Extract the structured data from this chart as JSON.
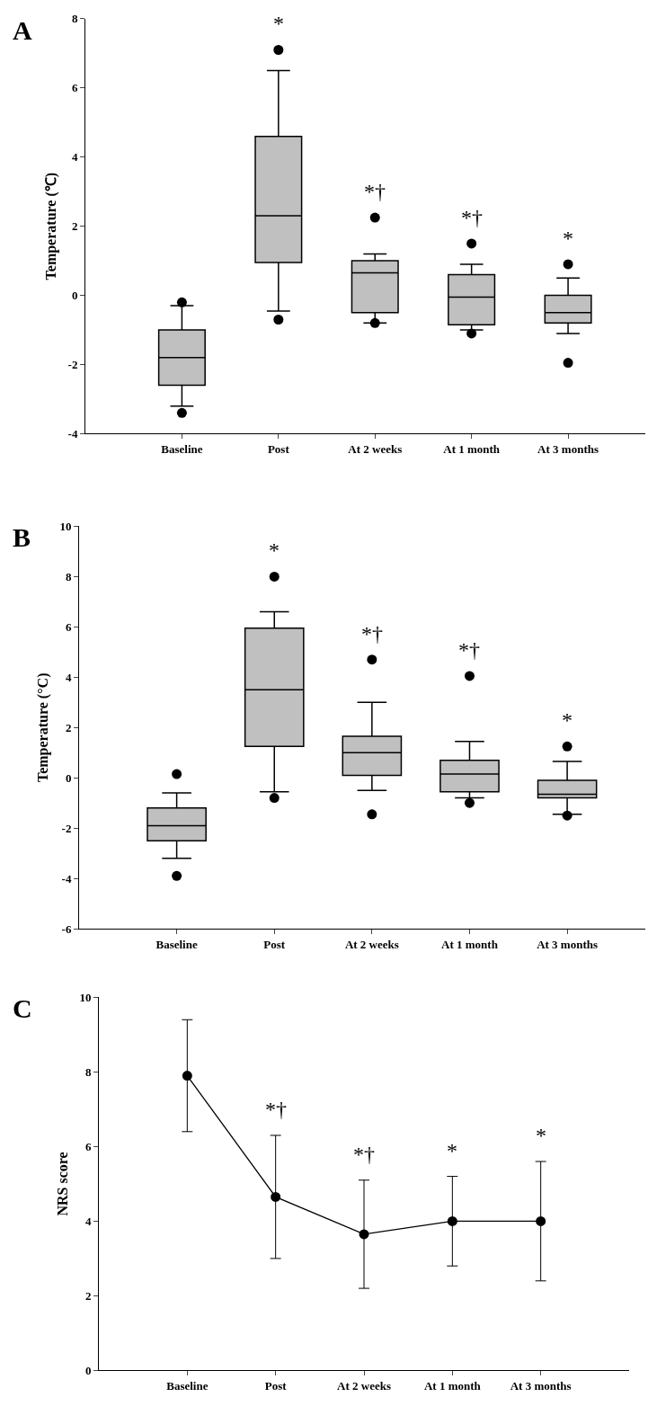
{
  "chart_data": [
    {
      "type": "box",
      "title": "A",
      "ylabel": "Temperature (℃)",
      "categories": [
        "Baseline",
        "Post",
        "At 2 weeks",
        "At 1 month",
        "At 3 months"
      ],
      "ylim": [
        -4,
        8
      ],
      "yticks": [
        -4,
        -2,
        0,
        2,
        4,
        6,
        8
      ],
      "series": [
        {
          "color": "#c0c0c0",
          "boxes": [
            {
              "low": -3.2,
              "q1": -2.6,
              "median": -1.8,
              "q3": -1.0,
              "high": -0.3,
              "outliers": [
                -0.2,
                -3.4
              ]
            },
            {
              "low": -0.45,
              "q1": 0.95,
              "median": 2.3,
              "q3": 4.6,
              "high": 6.5,
              "outliers": [
                7.1,
                -0.7
              ]
            },
            {
              "low": -0.8,
              "q1": -0.5,
              "median": 0.65,
              "q3": 1.0,
              "high": 1.2,
              "outliers": [
                2.25,
                -0.8
              ]
            },
            {
              "low": -1.0,
              "q1": -0.85,
              "median": -0.05,
              "q3": 0.6,
              "high": 0.9,
              "outliers": [
                1.5,
                -1.1
              ]
            },
            {
              "low": -1.1,
              "q1": -0.8,
              "median": -0.5,
              "q3": 0.0,
              "high": 0.5,
              "outliers": [
                0.9,
                -1.95
              ]
            }
          ]
        }
      ],
      "annotations": [
        "*",
        "*†",
        "*†",
        "*"
      ]
    },
    {
      "type": "box",
      "title": "B",
      "ylabel": "Temperature (°C)",
      "categories": [
        "Baseline",
        "Post",
        "At 2 weeks",
        "At 1 month",
        "At 3 months"
      ],
      "ylim": [
        -6,
        10
      ],
      "yticks": [
        -6,
        -4,
        -2,
        0,
        2,
        4,
        6,
        8,
        10
      ],
      "series": [
        {
          "color": "#c0c0c0",
          "boxes": [
            {
              "low": -3.2,
              "q1": -2.5,
              "median": -1.9,
              "q3": -1.2,
              "high": -0.6,
              "outliers": [
                0.15,
                -3.9
              ]
            },
            {
              "low": -0.55,
              "q1": 1.25,
              "median": 3.5,
              "q3": 5.95,
              "high": 6.6,
              "outliers": [
                8.0,
                -0.8
              ]
            },
            {
              "low": -0.5,
              "q1": 0.1,
              "median": 1.0,
              "q3": 1.65,
              "high": 3.0,
              "outliers": [
                4.7,
                -1.45
              ]
            },
            {
              "low": -0.8,
              "q1": -0.55,
              "median": 0.15,
              "q3": 0.7,
              "high": 1.45,
              "outliers": [
                4.05,
                -1.0
              ]
            },
            {
              "low": -1.45,
              "q1": -0.8,
              "median": -0.65,
              "q3": -0.1,
              "high": 0.65,
              "outliers": [
                1.25,
                -1.5
              ]
            }
          ]
        }
      ],
      "annotations": [
        "*",
        "*†",
        "*†",
        "*"
      ]
    },
    {
      "type": "line",
      "title": "C",
      "ylabel": "NRS score",
      "categories": [
        "Baseline",
        "Post",
        "At 2 weeks",
        "At 1 month",
        "At 3 months"
      ],
      "ylim": [
        0,
        10
      ],
      "yticks": [
        0,
        2,
        4,
        6,
        8,
        10
      ],
      "marker": "circle",
      "line_style": "solid",
      "series": [
        {
          "color": "#000000",
          "values": [
            7.9,
            4.65,
            3.65,
            4.0,
            4.0
          ],
          "errors": [
            [
              6.4,
              9.4
            ],
            [
              3.0,
              6.3
            ],
            [
              2.2,
              5.1
            ],
            [
              2.8,
              5.2
            ],
            [
              2.4,
              5.6
            ]
          ]
        }
      ],
      "annotations": [
        "*†",
        "*†",
        "*",
        "*"
      ]
    }
  ]
}
